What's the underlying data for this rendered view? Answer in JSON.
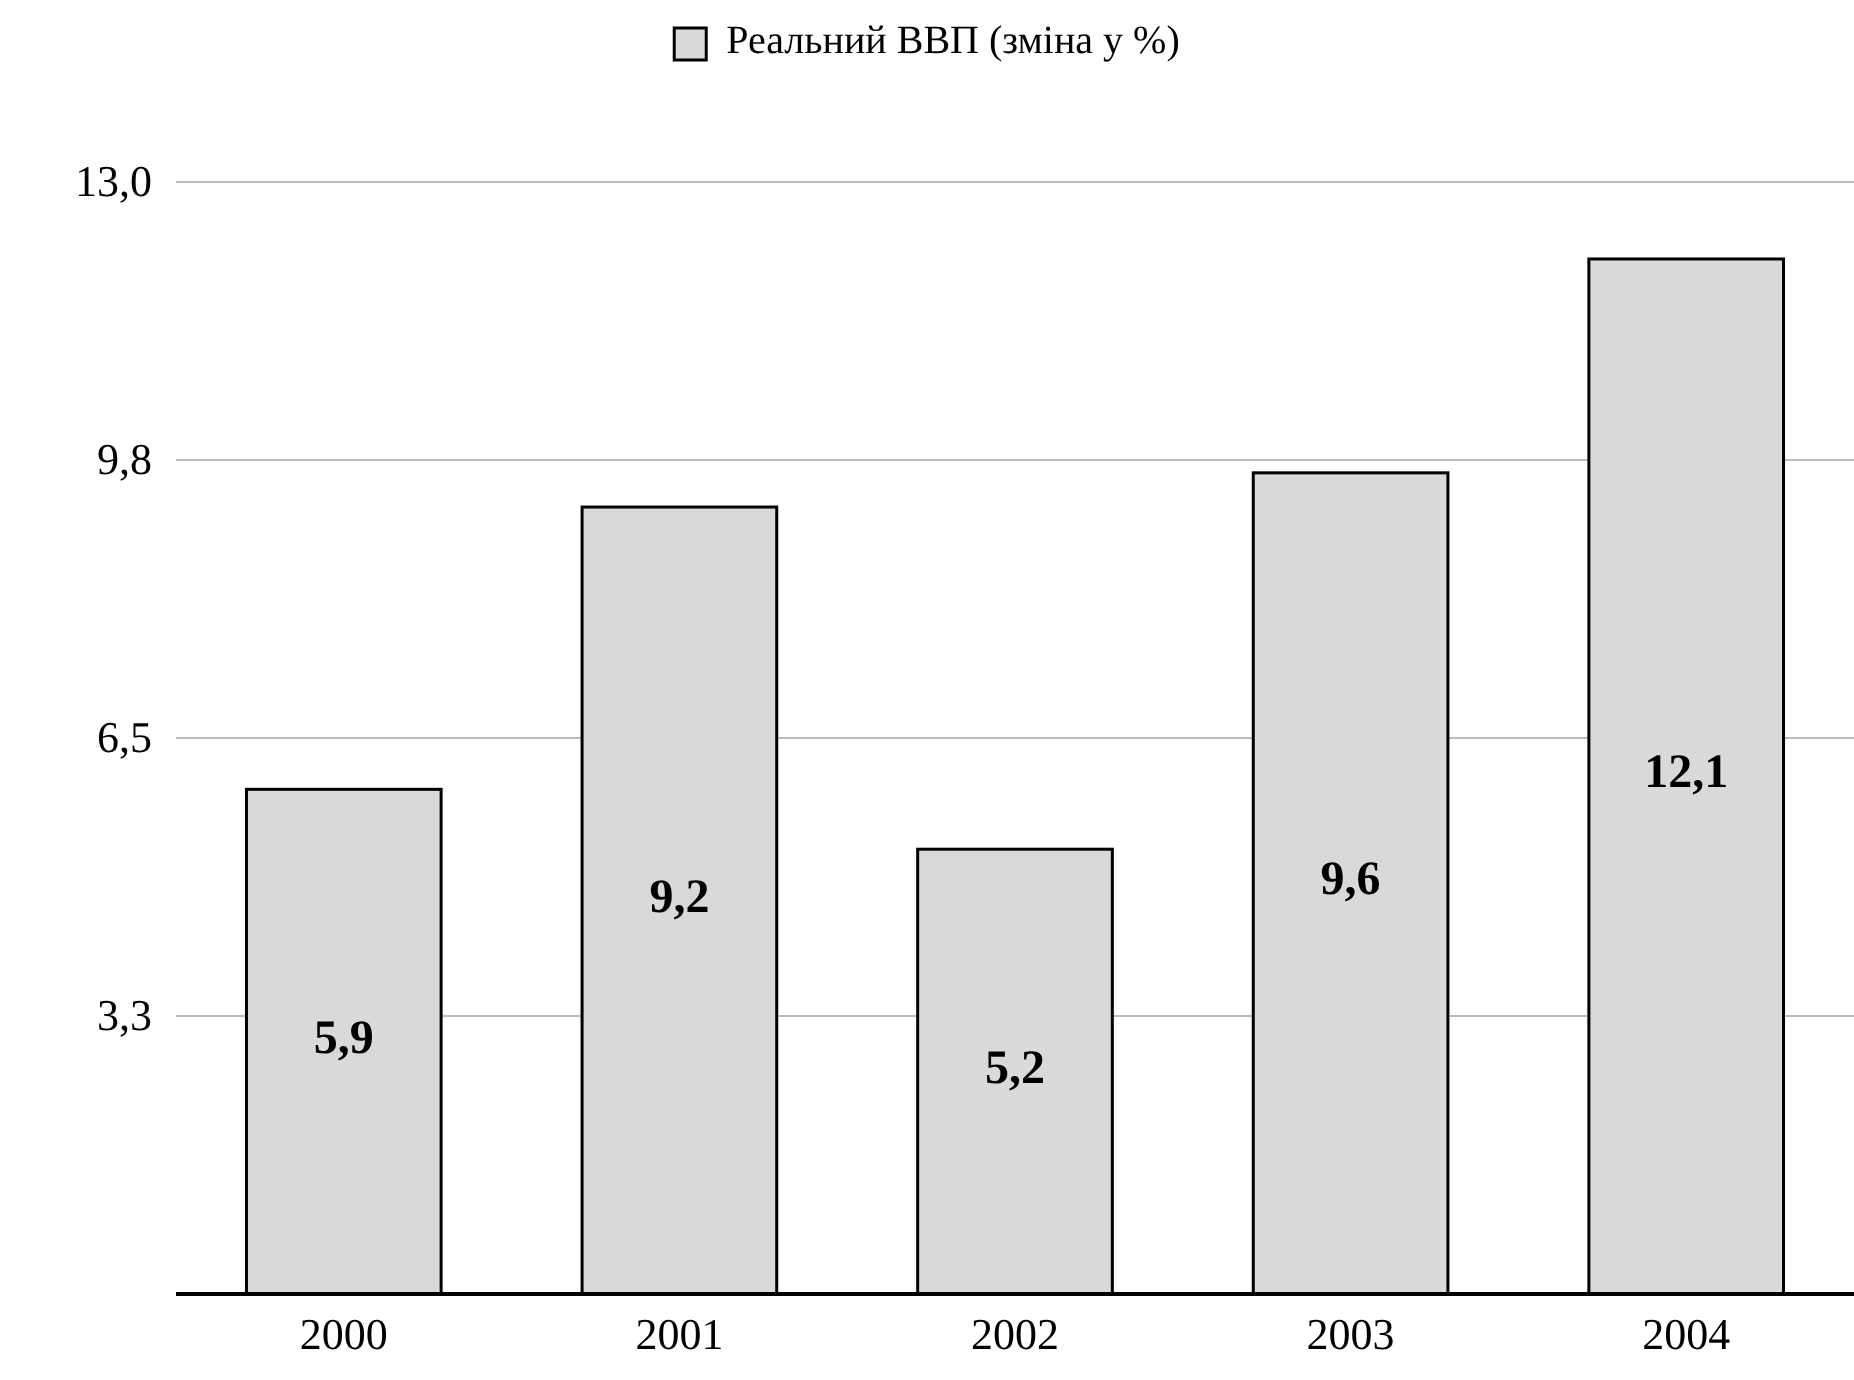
{
  "chart_data": {
    "type": "bar",
    "categories": [
      "2000",
      "2001",
      "2002",
      "2003",
      "2004"
    ],
    "series": [
      {
        "name": "Реальний ВВП (зміна у %)",
        "color": "#d9d9d9",
        "values": [
          5.9,
          9.2,
          5.2,
          9.6,
          12.1
        ],
        "value_labels": [
          "5,9",
          "9,2",
          "5,2",
          "9,6",
          "12,1"
        ]
      }
    ],
    "ylim": [
      0,
      13
    ],
    "yticks": [
      {
        "value": 3.25,
        "label": "3,3"
      },
      {
        "value": 6.5,
        "label": "6,5"
      },
      {
        "value": 9.75,
        "label": "9,8"
      },
      {
        "value": 13,
        "label": "13,0"
      }
    ],
    "grid": "y",
    "legend": "top"
  }
}
